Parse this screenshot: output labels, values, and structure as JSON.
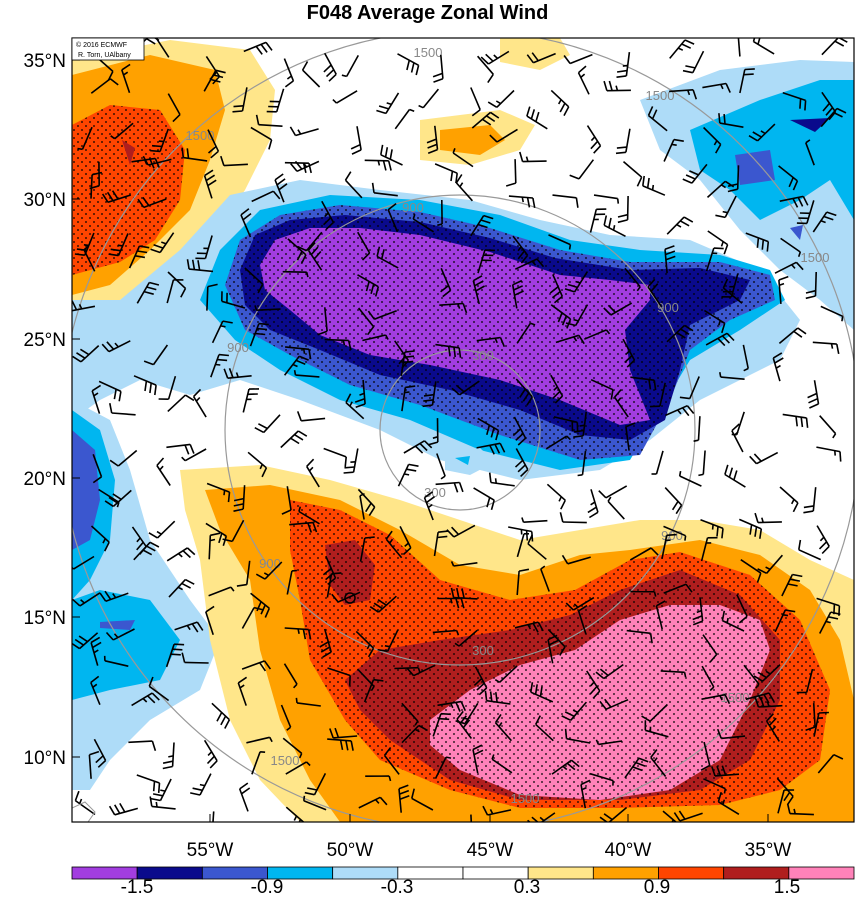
{
  "title": "F048 Average Zonal Wind",
  "credit": {
    "line1": "© 2016 ECMWF",
    "line2": "R. Torn, UAlbany"
  },
  "latitudes": [
    "35°N",
    "30°N",
    "25°N",
    "20°N",
    "15°N",
    "10°N"
  ],
  "longitudes": [
    "55°W",
    "50°W",
    "45°W",
    "40°W",
    "35°W"
  ],
  "colorbar": {
    "colors": [
      "#a23de0",
      "#0a0a8c",
      "#3b57cf",
      "#00b6f0",
      "#aedcf8",
      "#ffffff",
      "#ffffff",
      "#ffe68a",
      "#ffa100",
      "#ff4500",
      "#b01e1e",
      "#ff82b9"
    ],
    "labels": [
      "-1.5",
      "-0.9",
      "-0.3",
      "0.3",
      "0.9",
      "1.5"
    ]
  },
  "contour_labels": [
    "1500",
    "1500",
    "1500",
    "1500",
    "1500",
    "1500",
    "1500",
    "900",
    "900",
    "900",
    "900",
    "900",
    "300",
    "300",
    "300"
  ],
  "colors": {
    "purple": "#a23de0",
    "navy": "#0a0a8c",
    "blue": "#3b57cf",
    "cyan": "#00b6f0",
    "lightblue": "#aedcf8",
    "lightyellow": "#ffe68a",
    "orange": "#ffa100",
    "redorange": "#ff4500",
    "darkred": "#b01e1e",
    "pink": "#ff82b9"
  }
}
